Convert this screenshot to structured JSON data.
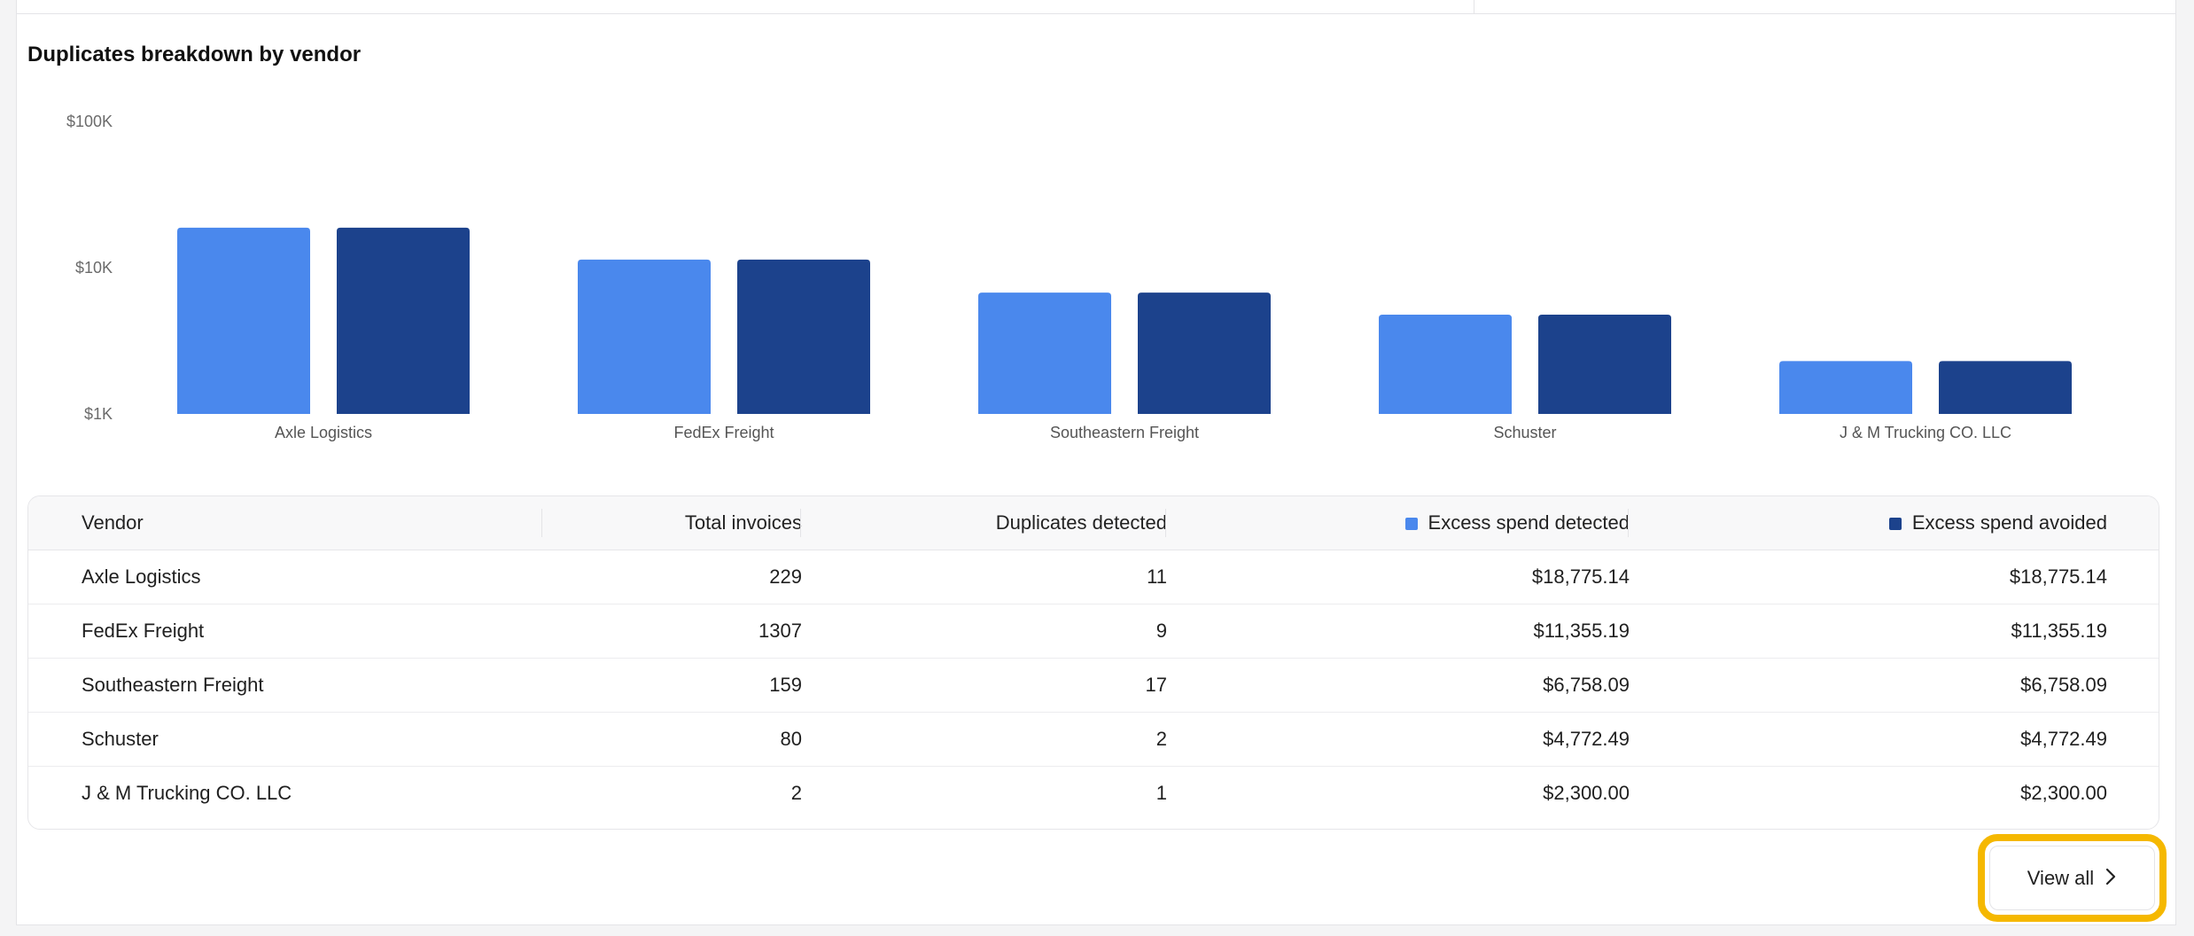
{
  "card": {
    "title": "Duplicates breakdown by vendor"
  },
  "colors": {
    "detected": "#4a88ed",
    "avoided": "#1c428c"
  },
  "chart_data": {
    "type": "bar",
    "scale": "log",
    "ylim": [
      1000,
      100000
    ],
    "y_ticks": [
      "$1K",
      "$10K",
      "$100K"
    ],
    "categories": [
      "Axle Logistics",
      "FedEx Freight",
      "Southeastern Freight",
      "Schuster",
      "J & M Trucking CO. LLC"
    ],
    "series": [
      {
        "name": "Excess spend detected",
        "values": [
          18775.14,
          11355.19,
          6758.09,
          4772.49,
          2300.0
        ]
      },
      {
        "name": "Excess spend avoided",
        "values": [
          18775.14,
          11355.19,
          6758.09,
          4772.49,
          2300.0
        ]
      }
    ]
  },
  "table": {
    "headers": {
      "vendor": "Vendor",
      "total": "Total invoices",
      "dup": "Duplicates detected",
      "detected": "Excess spend detected",
      "avoided": "Excess spend avoided"
    },
    "rows": [
      {
        "vendor": "Axle Logistics",
        "total": "229",
        "dup": "11",
        "detected": "$18,775.14",
        "avoided": "$18,775.14"
      },
      {
        "vendor": "FedEx Freight",
        "total": "1307",
        "dup": "9",
        "detected": "$11,355.19",
        "avoided": "$11,355.19"
      },
      {
        "vendor": "Southeastern Freight",
        "total": "159",
        "dup": "17",
        "detected": "$6,758.09",
        "avoided": "$6,758.09"
      },
      {
        "vendor": "Schuster",
        "total": "80",
        "dup": "2",
        "detected": "$4,772.49",
        "avoided": "$4,772.49"
      },
      {
        "vendor": "J & M Trucking CO. LLC",
        "total": "2",
        "dup": "1",
        "detected": "$2,300.00",
        "avoided": "$2,300.00"
      }
    ]
  },
  "view_all": {
    "label": "View all",
    "icon": "chevron-right-icon"
  }
}
